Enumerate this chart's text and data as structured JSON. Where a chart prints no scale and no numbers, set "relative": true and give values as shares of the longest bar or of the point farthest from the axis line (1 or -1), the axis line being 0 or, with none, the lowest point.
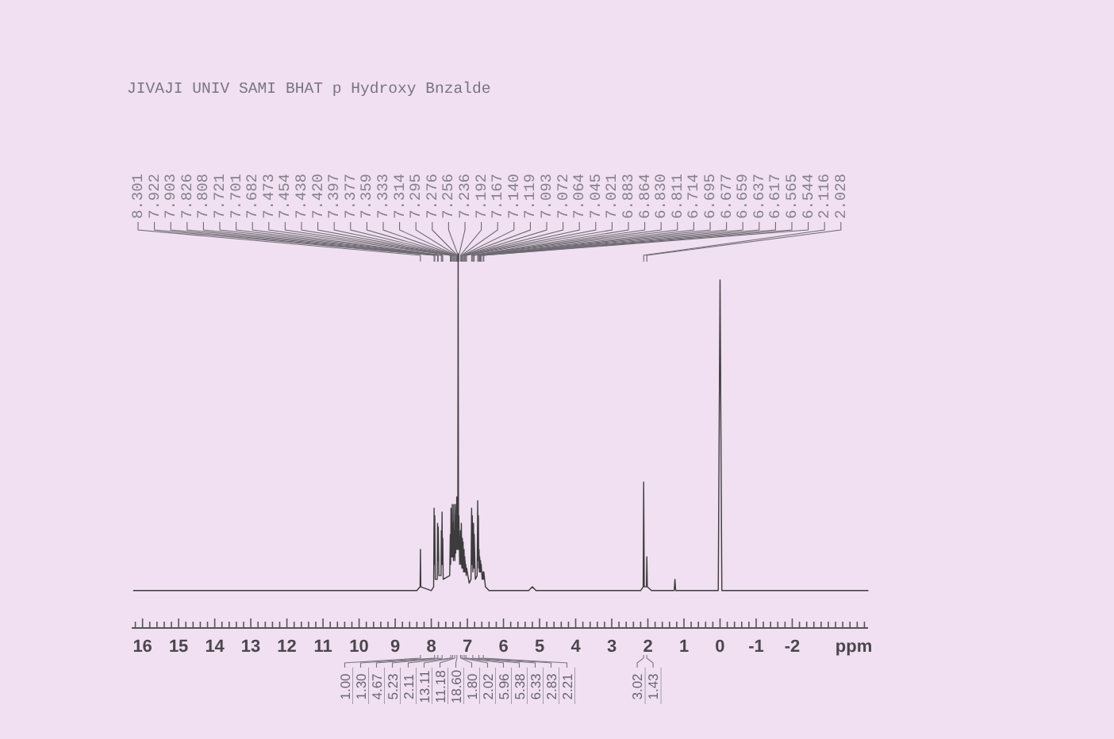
{
  "chart_data": {
    "type": "line",
    "title": "JIVAJI UNIV SAMI BHAT p Hydroxy Bnzalde",
    "xlabel": "ppm",
    "relative": true,
    "color": "#3c3c3c",
    "x": [
      16.25,
      8.4,
      8.31,
      8.301,
      8.29,
      8.0,
      7.935,
      7.922,
      7.912,
      7.903,
      7.89,
      7.835,
      7.826,
      7.817,
      7.808,
      7.79,
      7.73,
      7.721,
      7.711,
      7.701,
      7.691,
      7.682,
      7.67,
      7.49,
      7.473,
      7.463,
      7.454,
      7.446,
      7.438,
      7.429,
      7.42,
      7.408,
      7.397,
      7.387,
      7.377,
      7.368,
      7.359,
      7.346,
      7.333,
      7.323,
      7.314,
      7.305,
      7.295,
      7.285,
      7.276,
      7.266,
      7.256,
      7.246,
      7.236,
      7.214,
      7.192,
      7.18,
      7.167,
      7.153,
      7.14,
      7.129,
      7.119,
      7.106,
      7.093,
      7.082,
      7.072,
      7.068,
      7.064,
      7.055,
      7.045,
      7.033,
      7.021,
      6.95,
      6.9,
      6.883,
      6.873,
      6.864,
      6.847,
      6.83,
      6.82,
      6.811,
      6.78,
      6.73,
      6.714,
      6.704,
      6.695,
      6.686,
      6.677,
      6.668,
      6.659,
      6.648,
      6.637,
      6.627,
      6.617,
      6.59,
      6.565,
      6.555,
      6.544,
      6.5,
      6.4,
      5.3,
      5.2,
      5.1,
      2.2,
      2.13,
      2.116,
      2.1,
      2.04,
      2.028,
      2.015,
      1.9,
      1.27,
      1.25,
      1.23,
      0.05,
      0,
      -0.05,
      -4.1
    ],
    "values": [
      0.1,
      0.1,
      0.11,
      0.21,
      0.11,
      0.1,
      0.11,
      0.32,
      0.17,
      0.3,
      0.13,
      0.13,
      0.28,
      0.18,
      0.27,
      0.14,
      0.14,
      0.26,
      0.17,
      0.31,
      0.17,
      0.24,
      0.13,
      0.14,
      0.25,
      0.17,
      0.32,
      0.19,
      0.3,
      0.19,
      0.33,
      0.19,
      0.28,
      0.18,
      0.33,
      0.19,
      0.26,
      0.18,
      0.33,
      0.2,
      0.3,
      0.21,
      0.35,
      0.21,
      0.33,
      0.21,
      1,
      0.21,
      0.3,
      0.17,
      0.26,
      0.17,
      0.28,
      0.16,
      0.24,
      0.16,
      0.23,
      0.15,
      0.21,
      0.15,
      0.19,
      0.16,
      0.18,
      0.15,
      0.17,
      0.14,
      0.16,
      0.12,
      0.13,
      0.32,
      0.17,
      0.3,
      0.15,
      0.28,
      0.16,
      0.25,
      0.13,
      0.14,
      0.34,
      0.18,
      0.3,
      0.16,
      0.21,
      0.15,
      0.19,
      0.15,
      0.18,
      0.15,
      0.17,
      0.13,
      0.15,
      0.13,
      0.15,
      0.11,
      0.1,
      0.1,
      0.11,
      0.1,
      0.1,
      0.11,
      0.39,
      0.11,
      0.11,
      0.19,
      0.11,
      0.1,
      0.1,
      0.13,
      0.1,
      0.1,
      0.93,
      0.1,
      0.1
    ],
    "xlim": [
      16.3,
      -4.1
    ],
    "xticks": [
      {
        "value": 16.2,
        "label": null
      },
      16,
      {
        "value": 15.8,
        "label": null
      },
      {
        "value": 15.6,
        "label": null
      },
      {
        "value": 15.4,
        "label": null
      },
      {
        "value": 15.2,
        "label": null
      },
      15,
      {
        "value": 14.8,
        "label": null
      },
      {
        "value": 14.6,
        "label": null
      },
      {
        "value": 14.4,
        "label": null
      },
      {
        "value": 14.2,
        "label": null
      },
      14,
      {
        "value": 13.8,
        "label": null
      },
      {
        "value": 13.6,
        "label": null
      },
      {
        "value": 13.4,
        "label": null
      },
      {
        "value": 13.2,
        "label": null
      },
      13,
      {
        "value": 12.8,
        "label": null
      },
      {
        "value": 12.6,
        "label": null
      },
      {
        "value": 12.4,
        "label": null
      },
      {
        "value": 12.2,
        "label": null
      },
      12,
      {
        "value": 11.8,
        "label": null
      },
      {
        "value": 11.6,
        "label": null
      },
      {
        "value": 11.4,
        "label": null
      },
      {
        "value": 11.2,
        "label": null
      },
      11,
      {
        "value": 10.8,
        "label": null
      },
      {
        "value": 10.6,
        "label": null
      },
      {
        "value": 10.4,
        "label": null
      },
      {
        "value": 10.2,
        "label": null
      },
      10,
      {
        "value": 9.8,
        "label": null
      },
      {
        "value": 9.6,
        "label": null
      },
      {
        "value": 9.4,
        "label": null
      },
      {
        "value": 9.2,
        "label": null
      },
      9,
      {
        "value": 8.8,
        "label": null
      },
      {
        "value": 8.6,
        "label": null
      },
      {
        "value": 8.4,
        "label": null
      },
      {
        "value": 8.2,
        "label": null
      },
      8,
      {
        "value": 7.8,
        "label": null
      },
      {
        "value": 7.6,
        "label": null
      },
      {
        "value": 7.4,
        "label": null
      },
      {
        "value": 7.2,
        "label": null
      },
      7,
      {
        "value": 6.8,
        "label": null
      },
      {
        "value": 6.6,
        "label": null
      },
      {
        "value": 6.4,
        "label": null
      },
      {
        "value": 6.2,
        "label": null
      },
      6,
      {
        "value": 5.8,
        "label": null
      },
      {
        "value": 5.6,
        "label": null
      },
      {
        "value": 5.4,
        "label": null
      },
      {
        "value": 5.2,
        "label": null
      },
      5,
      {
        "value": 4.8,
        "label": null
      },
      {
        "value": 4.6,
        "label": null
      },
      {
        "value": 4.4,
        "label": null
      },
      {
        "value": 4.2,
        "label": null
      },
      4,
      {
        "value": 3.8,
        "label": null
      },
      {
        "value": 3.6,
        "label": null
      },
      {
        "value": 3.4,
        "label": null
      },
      {
        "value": 3.2,
        "label": null
      },
      3,
      {
        "value": 2.8,
        "label": null
      },
      {
        "value": 2.6,
        "label": null
      },
      {
        "value": 2.4,
        "label": null
      },
      {
        "value": 2.2,
        "label": null
      },
      2,
      {
        "value": 1.8,
        "label": null
      },
      {
        "value": 1.6,
        "label": null
      },
      {
        "value": 1.4,
        "label": null
      },
      {
        "value": 1.2,
        "label": null
      },
      1,
      {
        "value": 0.8,
        "label": null
      },
      {
        "value": 0.6,
        "label": null
      },
      {
        "value": 0.4,
        "label": null
      },
      {
        "value": 0.2,
        "label": null
      },
      0,
      {
        "value": -0.2,
        "label": null
      },
      {
        "value": -0.4,
        "label": null
      },
      {
        "value": -0.6,
        "label": null
      },
      {
        "value": -0.8,
        "label": null
      },
      -1,
      {
        "value": -1.2,
        "label": null
      },
      {
        "value": -1.4,
        "label": null
      },
      {
        "value": -1.6,
        "label": null
      },
      {
        "value": -1.8,
        "label": null
      },
      -2,
      {
        "value": -2.2,
        "label": null
      },
      {
        "value": -2.4,
        "label": null
      },
      {
        "value": -2.6,
        "label": null
      },
      {
        "value": -2.8,
        "label": null
      },
      {
        "value": -3,
        "label": null
      },
      {
        "value": -3.2,
        "label": null
      },
      {
        "value": -3.4,
        "label": null
      },
      {
        "value": -3.6,
        "label": null
      },
      {
        "value": -3.8,
        "label": null
      },
      {
        "value": -4,
        "label": null
      }
    ],
    "annotations": [
      {
        "text": "8.301",
        "x": 8.301
      },
      {
        "text": "7.922",
        "x": 7.922
      },
      {
        "text": "7.903",
        "x": 7.903
      },
      {
        "text": "7.826",
        "x": 7.826
      },
      {
        "text": "7.808",
        "x": 7.808
      },
      {
        "text": "7.721",
        "x": 7.721
      },
      {
        "text": "7.701",
        "x": 7.701
      },
      {
        "text": "7.682",
        "x": 7.682
      },
      {
        "text": "7.473",
        "x": 7.473
      },
      {
        "text": "7.454",
        "x": 7.454
      },
      {
        "text": "7.438",
        "x": 7.438
      },
      {
        "text": "7.420",
        "x": 7.42
      },
      {
        "text": "7.397",
        "x": 7.397
      },
      {
        "text": "7.377",
        "x": 7.377
      },
      {
        "text": "7.359",
        "x": 7.359
      },
      {
        "text": "7.333",
        "x": 7.333
      },
      {
        "text": "7.314",
        "x": 7.314
      },
      {
        "text": "7.295",
        "x": 7.295
      },
      {
        "text": "7.276",
        "x": 7.276
      },
      {
        "text": "7.256",
        "x": 7.256
      },
      {
        "text": "7.236",
        "x": 7.236
      },
      {
        "text": "7.192",
        "x": 7.192
      },
      {
        "text": "7.167",
        "x": 7.167
      },
      {
        "text": "7.140",
        "x": 7.14
      },
      {
        "text": "7.119",
        "x": 7.119
      },
      {
        "text": "7.093",
        "x": 7.093
      },
      {
        "text": "7.072",
        "x": 7.072
      },
      {
        "text": "7.064",
        "x": 7.064
      },
      {
        "text": "7.045",
        "x": 7.045
      },
      {
        "text": "7.021",
        "x": 7.021
      },
      {
        "text": "6.883",
        "x": 6.883
      },
      {
        "text": "6.864",
        "x": 6.864
      },
      {
        "text": "6.830",
        "x": 6.83
      },
      {
        "text": "6.811",
        "x": 6.811
      },
      {
        "text": "6.714",
        "x": 6.714
      },
      {
        "text": "6.695",
        "x": 6.695
      },
      {
        "text": "6.677",
        "x": 6.677
      },
      {
        "text": "6.659",
        "x": 6.659
      },
      {
        "text": "6.637",
        "x": 6.637
      },
      {
        "text": "6.617",
        "x": 6.617
      },
      {
        "text": "6.565",
        "x": 6.565
      },
      {
        "text": "6.544",
        "x": 6.544
      },
      {
        "text": "2.116",
        "x": 2.116
      },
      {
        "text": "2.028",
        "x": 2.028
      },
      {
        "text": "1.00",
        "x": 8.3
      },
      {
        "text": "1.30",
        "x": 7.91
      },
      {
        "text": "4.67",
        "x": 7.82
      },
      {
        "text": "5.23",
        "x": 7.7
      },
      {
        "text": "2.11",
        "x": 7.46
      },
      {
        "text": "13.11",
        "x": 7.41
      },
      {
        "text": "11.18",
        "x": 7.35
      },
      {
        "text": "18.60",
        "x": 7.29
      },
      {
        "text": "1.80",
        "x": 7.19
      },
      {
        "text": "2.02",
        "x": 7.15
      },
      {
        "text": "5.96",
        "x": 7.09
      },
      {
        "text": "5.38",
        "x": 7.04
      },
      {
        "text": "6.33",
        "x": 6.85
      },
      {
        "text": "2.83",
        "x": 6.68
      },
      {
        "text": "2.21",
        "x": 6.56
      },
      {
        "text": "3.02",
        "x": 2.12
      },
      {
        "text": "1.43",
        "x": 2.03
      }
    ]
  }
}
